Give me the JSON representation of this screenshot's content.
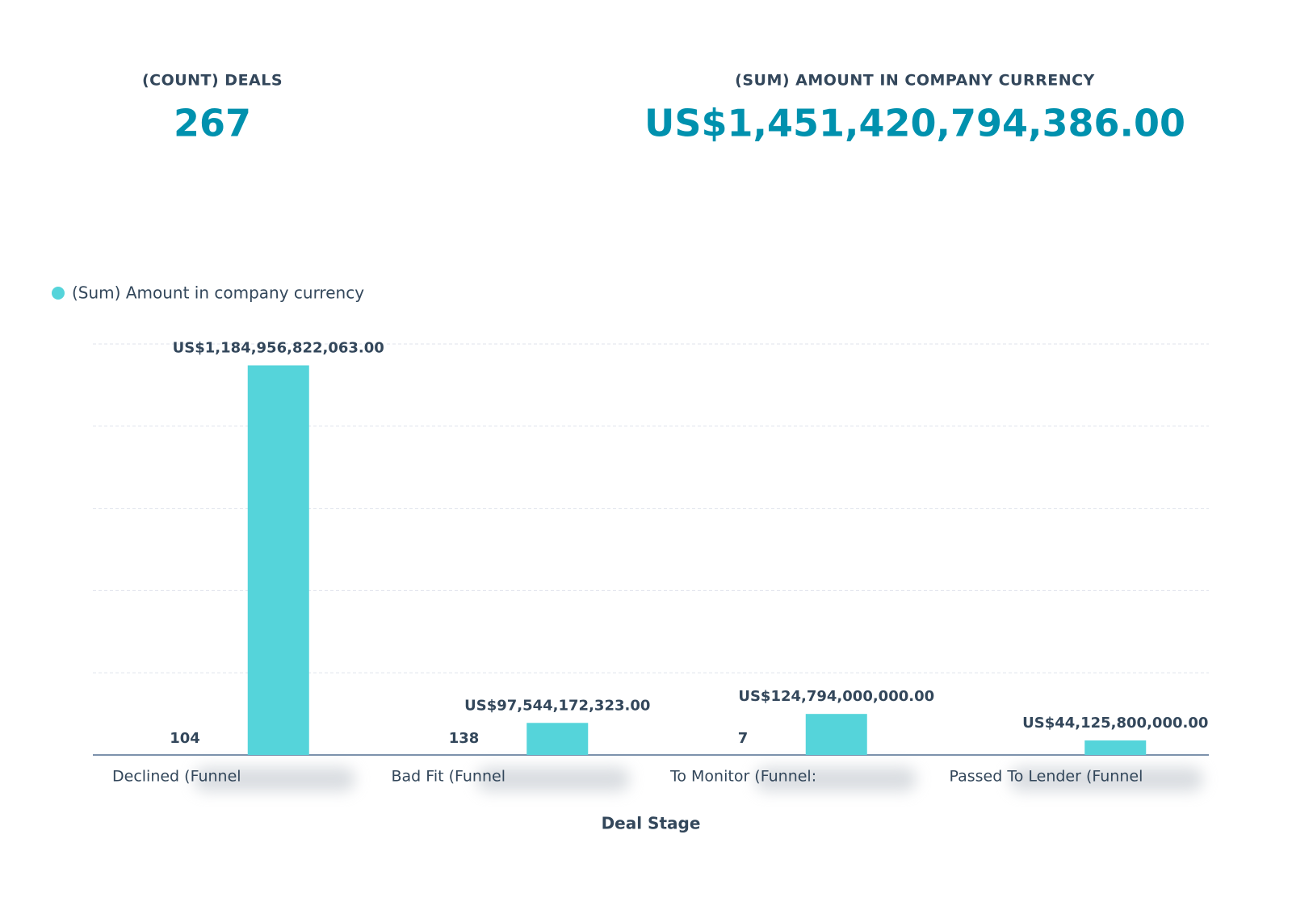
{
  "kpis": [
    {
      "label": "(COUNT) DEALS",
      "value": 267
    },
    {
      "label": "(SUM) AMOUNT IN COMPANY CURRENCY",
      "value": "US$1,451,420,794,386.00"
    }
  ],
  "chart_data": {
    "type": "bar",
    "x_label": "Deal Stage",
    "categories": [
      "Declined (Funnel",
      "Bad Fit (Funnel",
      "To Monitor (Funnel:",
      "Passed To Lender (Funnel"
    ],
    "series": [
      {
        "values": [
          104,
          138,
          7,
          null
        ]
      },
      {
        "name": "(Sum) Amount in company currency",
        "color": "#55d4da",
        "values": [
          1184956822063,
          97544172323,
          124794000000,
          44125800000
        ],
        "value_labels": [
          "US$1,184,956,822,063.00",
          "US$97,544,172,323.00",
          "US$124,794,000,000.00",
          "US$44,125,800,000.00"
        ]
      }
    ],
    "ylim": [
      0,
      1250000000000
    ],
    "yticks": [
      0,
      250000000000,
      500000000000,
      750000000000,
      1000000000000,
      1250000000000
    ],
    "grid": true
  }
}
